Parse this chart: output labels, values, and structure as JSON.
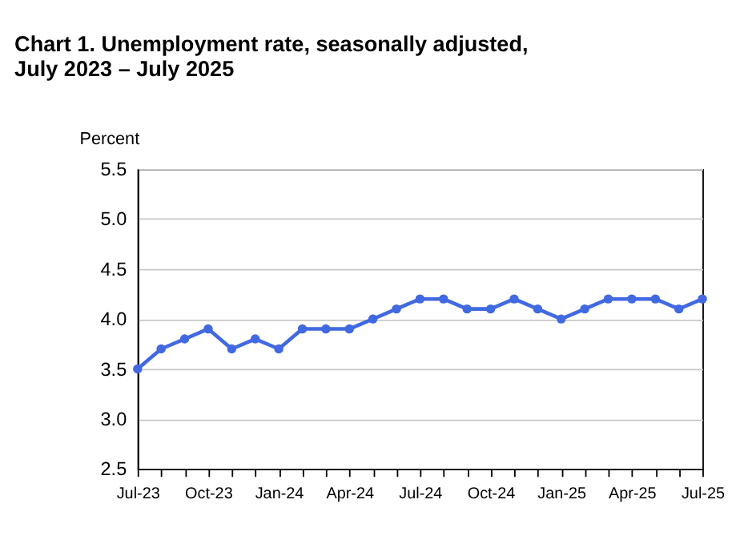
{
  "chart_data": {
    "type": "line",
    "title": "Chart 1. Unemployment rate, seasonally adjusted,\nJuly 2023 – July 2025",
    "ylabel": "Percent",
    "categories": [
      "Jul-23",
      null,
      null,
      "Oct-23",
      null,
      null,
      "Jan-24",
      null,
      null,
      "Apr-24",
      null,
      null,
      "Jul-24",
      null,
      null,
      "Oct-24",
      null,
      null,
      "Jan-25",
      null,
      null,
      "Apr-25",
      null,
      null,
      "Jul-25"
    ],
    "series": [
      {
        "color": "#4169e1",
        "values": [
          3.5,
          3.7,
          3.8,
          3.9,
          3.7,
          3.8,
          3.7,
          3.9,
          3.9,
          3.9,
          4.0,
          4.1,
          4.2,
          4.2,
          4.1,
          4.1,
          4.2,
          4.1,
          4.0,
          4.1,
          4.2,
          4.2,
          4.2,
          4.1,
          4.2
        ]
      }
    ],
    "ylim": [
      2.5,
      5.5
    ],
    "yticks": [
      2.5,
      {
        "value": 3,
        "label": "3.0"
      },
      3.5,
      {
        "value": 4,
        "label": "4.0"
      },
      4.5,
      {
        "value": 5,
        "label": "5.0"
      },
      5.5
    ],
    "grid": "y",
    "marker": "circle",
    "line_style": "solid",
    "legend": false
  }
}
